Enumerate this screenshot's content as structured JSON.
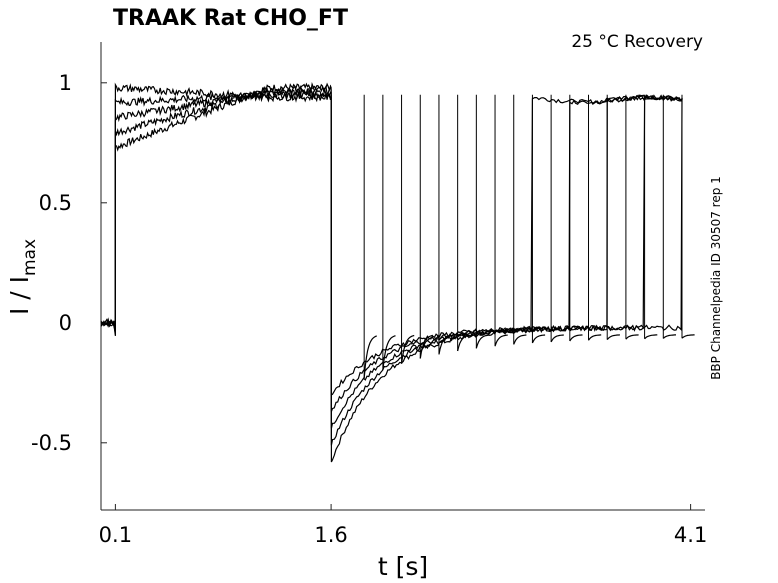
{
  "chart_data": {
    "type": "line",
    "title": "TRAAK  Rat  CHO_FT",
    "condition_label": "25 °C  Recovery",
    "side_label": "BBP Channelpedia ID 30507 rep 1",
    "xlabel": "t [s]",
    "ylabel_main": "I / I",
    "ylabel_sub": "max",
    "x_ticks": [
      "0.1",
      "1.6",
      "4.1"
    ],
    "y_ticks": [
      "1",
      "0.5",
      "0",
      "-0.5"
    ],
    "xlim": [
      0,
      4.2
    ],
    "ylim": [
      -0.78,
      1.17
    ],
    "stimulus": {
      "pre_level": 0.0,
      "step_on": 0.1,
      "step_off": 1.6,
      "step_level_range": [
        0.73,
        0.98
      ],
      "recovery_test_times": [
        1.83,
        1.96,
        2.09,
        2.22,
        2.35,
        2.48,
        2.61,
        2.74,
        2.87,
        3.0,
        3.13,
        3.26,
        3.39,
        3.52,
        3.65,
        3.78,
        3.91,
        4.04
      ],
      "recovery_test_level": 0.93,
      "tail_min_level": -0.58,
      "tail_steady_level": -0.02
    },
    "series_count": 5
  }
}
